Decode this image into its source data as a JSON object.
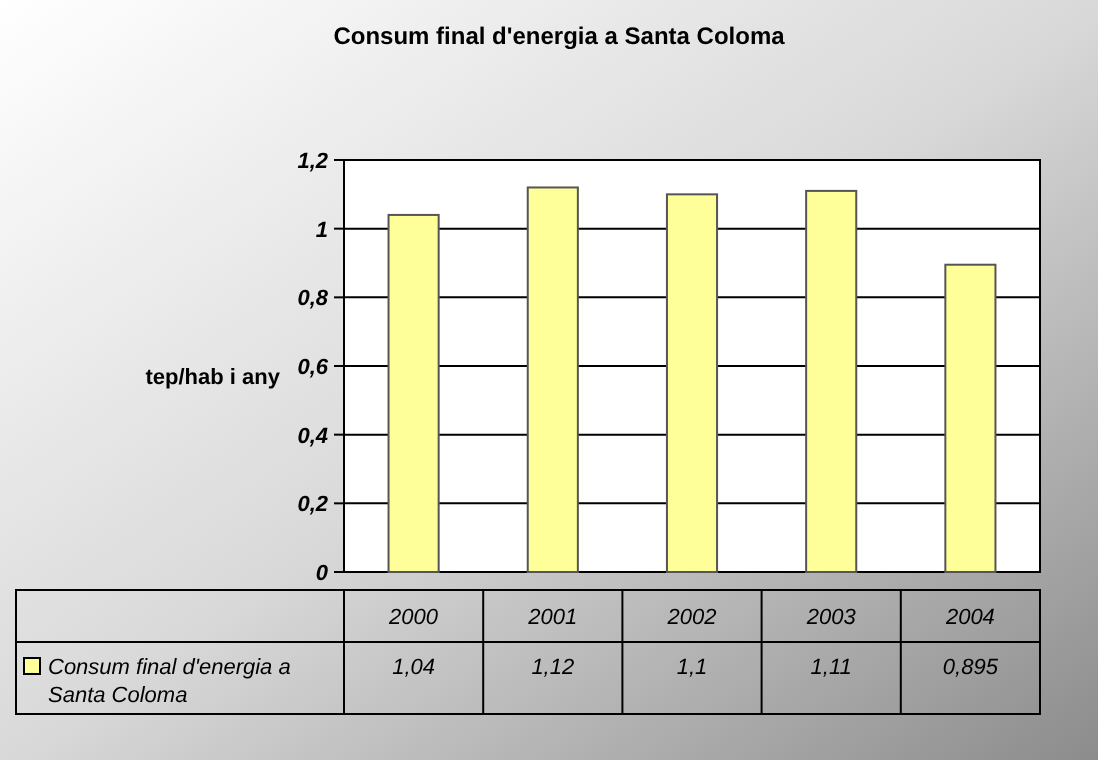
{
  "chart_data": {
    "type": "bar",
    "title": "Consum final d'energia a Santa Coloma",
    "ylabel": "tep/hab i any",
    "categories": [
      "2000",
      "2001",
      "2002",
      "2003",
      "2004"
    ],
    "series": [
      {
        "name": "Consum final d'energia a Santa Coloma",
        "color": "#ffff99",
        "values": [
          1.04,
          1.12,
          1.1,
          1.11,
          0.895
        ],
        "value_labels": [
          "1,04",
          "1,12",
          "1,1",
          "1,11",
          "0,895"
        ]
      }
    ],
    "ylim": [
      0,
      1.2
    ],
    "yticks": [
      0,
      {
        "value": 0.2,
        "label": "0,2"
      },
      {
        "value": 0.4,
        "label": "0,4"
      },
      {
        "value": 0.6,
        "label": "0,6"
      },
      {
        "value": 0.8,
        "label": "0,8"
      },
      1,
      {
        "value": 1.2,
        "label": "1,2"
      }
    ],
    "grid": true,
    "legend": "bottom"
  }
}
